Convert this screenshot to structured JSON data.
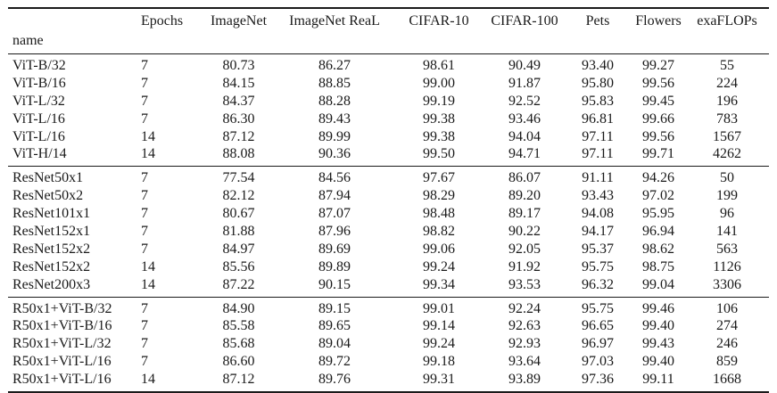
{
  "page": {
    "background": "#ffffff",
    "text_color": "#1a1a1a",
    "rule_color": "#1a1a1a"
  },
  "table": {
    "name_header": "name",
    "columns": [
      "Epochs",
      "ImageNet",
      "ImageNet ReaL",
      "CIFAR-10",
      "CIFAR-100",
      "Pets",
      "Flowers",
      "exaFLOPs"
    ],
    "groups": [
      {
        "group_label": "vit-models",
        "rows": [
          {
            "name": "ViT-B/32",
            "values": [
              "7",
              "80.73",
              "86.27",
              "98.61",
              "90.49",
              "93.40",
              "99.27",
              "55"
            ]
          },
          {
            "name": "ViT-B/16",
            "values": [
              "7",
              "84.15",
              "88.85",
              "99.00",
              "91.87",
              "95.80",
              "99.56",
              "224"
            ]
          },
          {
            "name": "ViT-L/32",
            "values": [
              "7",
              "84.37",
              "88.28",
              "99.19",
              "92.52",
              "95.83",
              "99.45",
              "196"
            ]
          },
          {
            "name": "ViT-L/16",
            "values": [
              "7",
              "86.30",
              "89.43",
              "99.38",
              "93.46",
              "96.81",
              "99.66",
              "783"
            ]
          },
          {
            "name": "ViT-L/16",
            "values": [
              "14",
              "87.12",
              "89.99",
              "99.38",
              "94.04",
              "97.11",
              "99.56",
              "1567"
            ]
          },
          {
            "name": "ViT-H/14",
            "values": [
              "14",
              "88.08",
              "90.36",
              "99.50",
              "94.71",
              "97.11",
              "99.71",
              "4262"
            ]
          }
        ]
      },
      {
        "group_label": "resnet-models",
        "rows": [
          {
            "name": "ResNet50x1",
            "values": [
              "7",
              "77.54",
              "84.56",
              "97.67",
              "86.07",
              "91.11",
              "94.26",
              "50"
            ]
          },
          {
            "name": "ResNet50x2",
            "values": [
              "7",
              "82.12",
              "87.94",
              "98.29",
              "89.20",
              "93.43",
              "97.02",
              "199"
            ]
          },
          {
            "name": "ResNet101x1",
            "values": [
              "7",
              "80.67",
              "87.07",
              "98.48",
              "89.17",
              "94.08",
              "95.95",
              "96"
            ]
          },
          {
            "name": "ResNet152x1",
            "values": [
              "7",
              "81.88",
              "87.96",
              "98.82",
              "90.22",
              "94.17",
              "96.94",
              "141"
            ]
          },
          {
            "name": "ResNet152x2",
            "values": [
              "7",
              "84.97",
              "89.69",
              "99.06",
              "92.05",
              "95.37",
              "98.62",
              "563"
            ]
          },
          {
            "name": "ResNet152x2",
            "values": [
              "14",
              "85.56",
              "89.89",
              "99.24",
              "91.92",
              "95.75",
              "98.75",
              "1126"
            ]
          },
          {
            "name": "ResNet200x3",
            "values": [
              "14",
              "87.22",
              "90.15",
              "99.34",
              "93.53",
              "96.32",
              "99.04",
              "3306"
            ]
          }
        ]
      },
      {
        "group_label": "hybrid-models",
        "rows": [
          {
            "name": "R50x1+ViT-B/32",
            "values": [
              "7",
              "84.90",
              "89.15",
              "99.01",
              "92.24",
              "95.75",
              "99.46",
              "106"
            ]
          },
          {
            "name": "R50x1+ViT-B/16",
            "values": [
              "7",
              "85.58",
              "89.65",
              "99.14",
              "92.63",
              "96.65",
              "99.40",
              "274"
            ]
          },
          {
            "name": "R50x1+ViT-L/32",
            "values": [
              "7",
              "85.68",
              "89.04",
              "99.24",
              "92.93",
              "96.97",
              "99.43",
              "246"
            ]
          },
          {
            "name": "R50x1+ViT-L/16",
            "values": [
              "7",
              "86.60",
              "89.72",
              "99.18",
              "93.64",
              "97.03",
              "99.40",
              "859"
            ]
          },
          {
            "name": "R50x1+ViT-L/16",
            "values": [
              "14",
              "87.12",
              "89.76",
              "99.31",
              "93.89",
              "97.36",
              "99.11",
              "1668"
            ]
          }
        ]
      }
    ]
  }
}
